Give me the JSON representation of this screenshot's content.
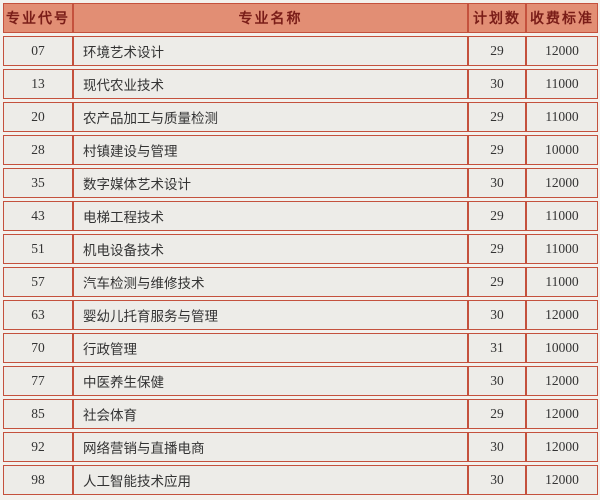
{
  "table": {
    "columns": [
      {
        "key": "major_code",
        "label": "专业代号"
      },
      {
        "key": "major_name",
        "label": "专业名称"
      },
      {
        "key": "plan_count",
        "label": "计划数"
      },
      {
        "key": "fee_standard",
        "label": "收费标准"
      }
    ],
    "rows": [
      [
        "07",
        "环境艺术设计",
        "29",
        "12000"
      ],
      [
        "13",
        "现代农业技术",
        "30",
        "11000"
      ],
      [
        "20",
        "农产品加工与质量检测",
        "29",
        "11000"
      ],
      [
        "28",
        "村镇建设与管理",
        "29",
        "10000"
      ],
      [
        "35",
        "数字媒体艺术设计",
        "30",
        "12000"
      ],
      [
        "43",
        "电梯工程技术",
        "29",
        "11000"
      ],
      [
        "51",
        "机电设备技术",
        "29",
        "11000"
      ],
      [
        "57",
        "汽车检测与维修技术",
        "29",
        "11000"
      ],
      [
        "63",
        "婴幼儿托育服务与管理",
        "30",
        "12000"
      ],
      [
        "70",
        "行政管理",
        "31",
        "10000"
      ],
      [
        "77",
        "中医养生保健",
        "30",
        "12000"
      ],
      [
        "85",
        "社会体育",
        "29",
        "12000"
      ],
      [
        "92",
        "网络营销与直播电商",
        "30",
        "12000"
      ],
      [
        "98",
        "人工智能技术应用",
        "30",
        "12000"
      ]
    ]
  },
  "colors": {
    "page_bg": "#F3F1ED",
    "cell_bg": "#EDECE8",
    "header_bg": "#E28E74",
    "header_text": "#7A1D18",
    "border": "#C4513D",
    "body_text": "#333333"
  }
}
